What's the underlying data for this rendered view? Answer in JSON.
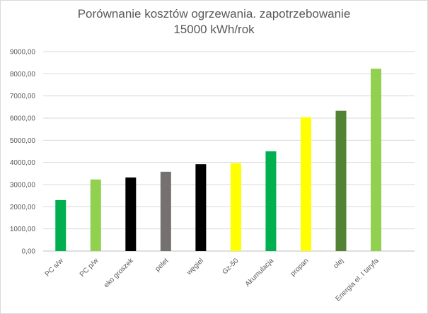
{
  "chart_data": {
    "type": "bar",
    "title": [
      "Porównanie kosztów ogrzewania. zapotrzebowanie",
      "15000 kWh/rok"
    ],
    "categories": [
      "PC s/w",
      "PC p/w",
      "eko groszek",
      "pelet",
      "węgiel",
      "Gz-50",
      "Akumulacja",
      "propan",
      "olej",
      "Energia el. I taryfa"
    ],
    "values": [
      2300,
      3230,
      3320,
      3580,
      3920,
      3960,
      4500,
      6040,
      6330,
      8230
    ],
    "colors": [
      "#00b050",
      "#92d050",
      "#000000",
      "#767171",
      "#000000",
      "#ffff00",
      "#00b050",
      "#ffff00",
      "#548235",
      "#92d050"
    ],
    "ylim": [
      0,
      9000
    ],
    "yticks": [
      "0,00",
      "1000,00",
      "2000,00",
      "3000,00",
      "4000,00",
      "5000,00",
      "6000,00",
      "7000,00",
      "8000,00",
      "9000,00"
    ],
    "grid": true,
    "legend": "none"
  }
}
